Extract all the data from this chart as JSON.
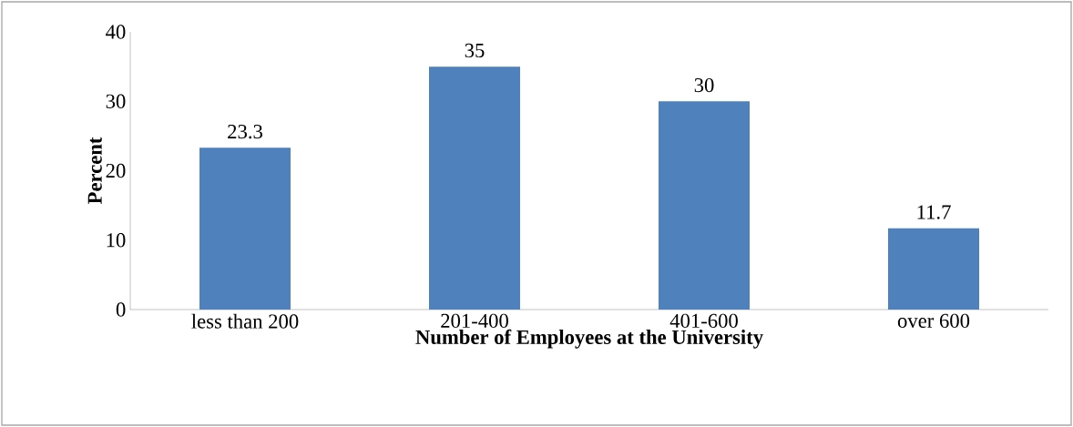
{
  "chart_data": {
    "type": "bar",
    "xlabel": "Number of Employees at the University",
    "ylabel": "Percent",
    "categories": [
      "less than 200",
      "201-400",
      "401-600",
      "over 600"
    ],
    "values": [
      23.3,
      35,
      30,
      11.7
    ],
    "color": "#4f81bd",
    "ylim": [
      0,
      40
    ],
    "yticks": [
      0,
      10,
      20,
      30,
      40
    ],
    "data_labels": true,
    "grid": false
  }
}
